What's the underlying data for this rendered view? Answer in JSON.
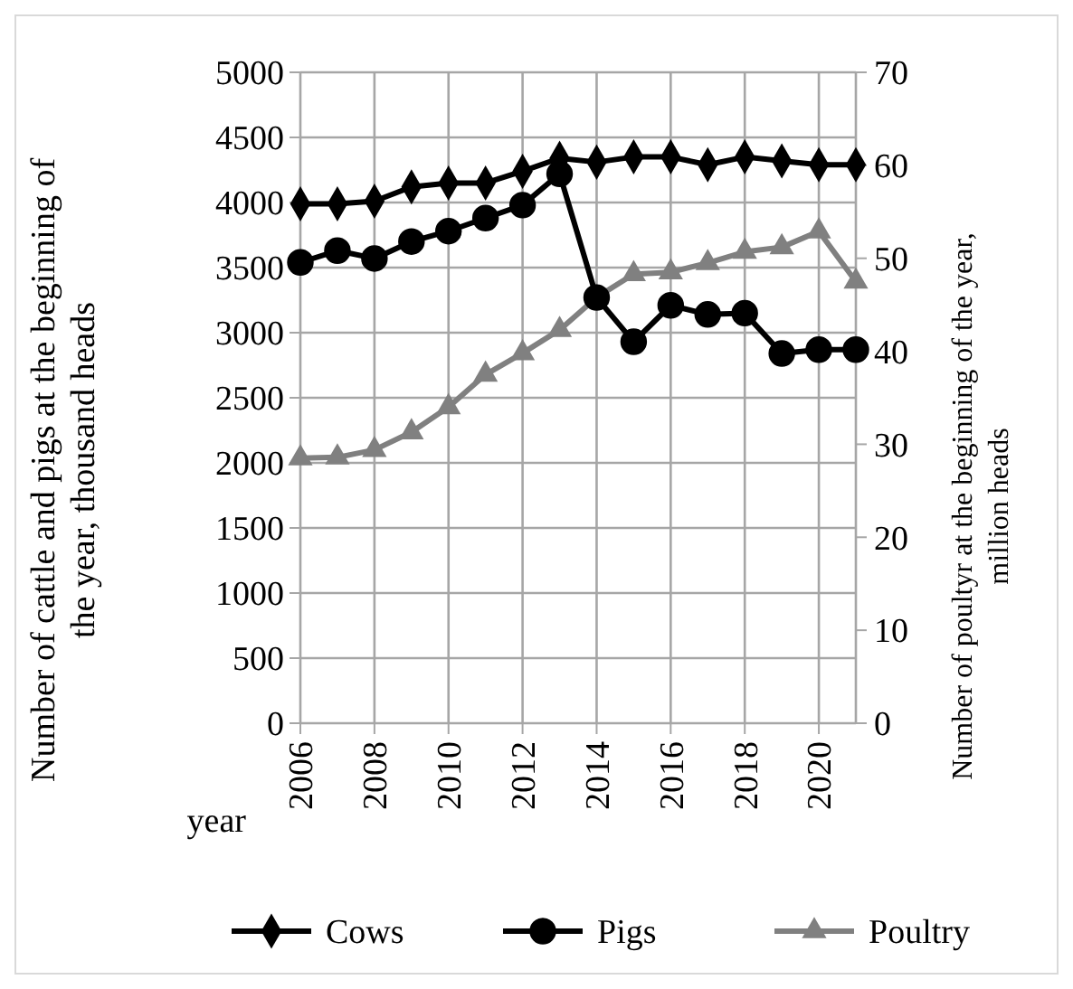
{
  "chart_data": {
    "type": "line",
    "xlabel": "year",
    "ylabel": "Number of cattle and pigs at the beginning of\nthe year, thousand heads",
    "y2label": "Number of poultyr at the beginning of the year,\nmillion heads",
    "categories": [
      "2006",
      null,
      "2008",
      null,
      "2010",
      null,
      "2012",
      null,
      "2014",
      null,
      "2016",
      null,
      "2018",
      null,
      "2020",
      null
    ],
    "ylim": [
      0,
      5000
    ],
    "yticks": [
      0,
      500,
      1000,
      1500,
      2000,
      2500,
      3000,
      3500,
      4000,
      4500,
      5000
    ],
    "y2lim": [
      0,
      70
    ],
    "y2ticks": [
      0,
      10,
      20,
      30,
      40,
      50,
      60,
      70
    ],
    "grid": true,
    "legend": "bottom",
    "series": [
      {
        "name": "Cows",
        "color": "#000000",
        "marker": "diamond",
        "values": [
          3990,
          3990,
          4010,
          4120,
          4150,
          4150,
          4240,
          4340,
          4310,
          4350,
          4350,
          4290,
          4350,
          4320,
          4290,
          4290
        ]
      },
      {
        "name": "Pigs",
        "color": "#000000",
        "marker": "circle",
        "values": [
          3540,
          3630,
          3570,
          3700,
          3780,
          3880,
          3980,
          4220,
          3270,
          2930,
          3210,
          3140,
          3150,
          2840,
          2870,
          2870
        ]
      },
      {
        "name": "Poultry",
        "color": "#808080",
        "marker": "triangle",
        "axis": "y2",
        "values": [
          28.5,
          28.6,
          29.4,
          31.3,
          34.0,
          37.5,
          39.8,
          42.3,
          45.8,
          48.3,
          48.5,
          49.5,
          50.7,
          51.2,
          52.9,
          47.5
        ]
      }
    ]
  }
}
